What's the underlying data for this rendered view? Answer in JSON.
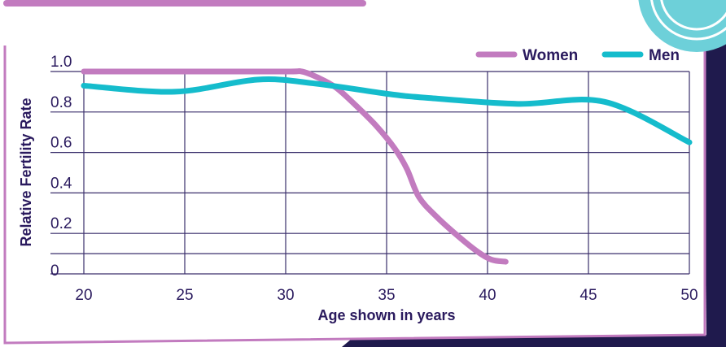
{
  "chart_data": {
    "type": "line",
    "title": "",
    "xlabel": "Age shown in years",
    "ylabel": "Relative Fertility Rate",
    "xlim": [
      20,
      50
    ],
    "ylim": [
      0,
      1.0
    ],
    "x_ticks": [
      "20",
      "25",
      "30",
      "35",
      "40",
      "45",
      "50"
    ],
    "y_ticks": [
      "0",
      "0.2",
      "0.4",
      "0.6",
      "0.8",
      "1.0"
    ],
    "grid": true,
    "legend_position": "top-right",
    "series": [
      {
        "name": "Women",
        "color": "#c27bbf",
        "points": [
          [
            20,
            1.0
          ],
          [
            25,
            1.0
          ],
          [
            30,
            1.0
          ],
          [
            30.8,
            1.0
          ],
          [
            31.6,
            0.97
          ],
          [
            32.5,
            0.92
          ],
          [
            33.5,
            0.83
          ],
          [
            34.5,
            0.73
          ],
          [
            35.4,
            0.62
          ],
          [
            36,
            0.52
          ],
          [
            36.6,
            0.38
          ],
          [
            37.5,
            0.28
          ],
          [
            38.5,
            0.19
          ],
          [
            39.5,
            0.11
          ],
          [
            40.2,
            0.07
          ],
          [
            40.9,
            0.06
          ]
        ]
      },
      {
        "name": "Men",
        "color": "#15bccc",
        "points": [
          [
            20,
            0.93
          ],
          [
            24.5,
            0.9
          ],
          [
            28.6,
            0.96
          ],
          [
            31.5,
            0.94
          ],
          [
            35,
            0.89
          ],
          [
            37,
            0.87
          ],
          [
            41.5,
            0.84
          ],
          [
            45.8,
            0.85
          ],
          [
            50,
            0.65
          ]
        ]
      }
    ]
  },
  "colors": {
    "frame": "#1f1a4d",
    "panel_border": "#c27bbf",
    "accent_teal": "#6dd0d9",
    "text": "#2a1a5e"
  }
}
